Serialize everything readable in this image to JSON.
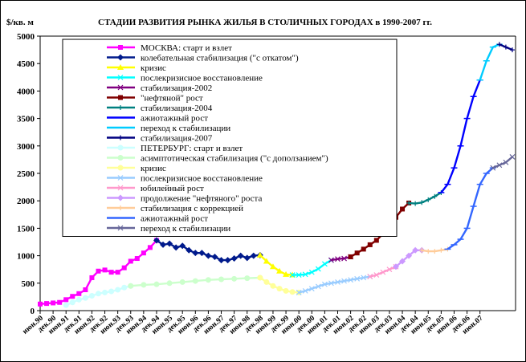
{
  "chart_data": {
    "type": "line",
    "title": "СТАДИИ РАЗВИТИЯ РЫНКА ЖИЛЬЯ В СТОЛИЧНЫХ ГОРОДАХ в 1990-2007 гг.",
    "ylabel": "$/кв. м",
    "xlabel": "",
    "ylim": [
      0,
      5000
    ],
    "yticks": [
      0,
      500,
      1000,
      1500,
      2000,
      2500,
      3000,
      3500,
      4000,
      4500,
      5000
    ],
    "x_tick_labels": [
      "июн.90",
      "дек.90",
      "июн.91",
      "дек.91",
      "июн.92",
      "дек.92",
      "июн.93",
      "дек.93",
      "июн.94",
      "дек.94",
      "июн.95",
      "дек.95",
      "июн.96",
      "дек.96",
      "июн.97",
      "дек.97",
      "июн.98",
      "дек.98",
      "июн.99",
      "дек.99",
      "июн.00",
      "дек.00",
      "июн.01",
      "дек.01",
      "июн.02",
      "дек.02",
      "июн.03",
      "дек.03",
      "июн.04",
      "дек.04",
      "июн.05",
      "дек.05",
      "июн.06",
      "дек.06",
      "июн.07"
    ],
    "grid": false,
    "legend_position": "top-left",
    "series": [
      {
        "name": "МОСКВА: старт и взлет",
        "color": "#ff00ff",
        "marker": "square",
        "points": [
          [
            0,
            120
          ],
          [
            1,
            130
          ],
          [
            2,
            140
          ],
          [
            3,
            150
          ],
          [
            4,
            200
          ],
          [
            5,
            260
          ],
          [
            6,
            310
          ],
          [
            7,
            380
          ],
          [
            8,
            600
          ],
          [
            9,
            720
          ],
          [
            10,
            740
          ],
          [
            11,
            700
          ],
          [
            12,
            700
          ],
          [
            13,
            780
          ],
          [
            14,
            900
          ],
          [
            15,
            950
          ],
          [
            16,
            1050
          ],
          [
            17,
            1150
          ],
          [
            18,
            1280
          ]
        ]
      },
      {
        "name": "колебательная стабилизация (\"с откатом\")",
        "color": "#001a8c",
        "marker": "diamond",
        "points": [
          [
            18,
            1280
          ],
          [
            19,
            1200
          ],
          [
            20,
            1220
          ],
          [
            21,
            1150
          ],
          [
            22,
            1180
          ],
          [
            23,
            1100
          ],
          [
            24,
            1050
          ],
          [
            25,
            1050
          ],
          [
            26,
            1000
          ],
          [
            27,
            980
          ],
          [
            28,
            920
          ],
          [
            29,
            920
          ],
          [
            30,
            950
          ],
          [
            31,
            1000
          ],
          [
            32,
            960
          ],
          [
            33,
            1000
          ],
          [
            34,
            1010
          ]
        ]
      },
      {
        "name": "кризис",
        "color": "#ffff00",
        "marker": "triangle",
        "points": [
          [
            34,
            1010
          ],
          [
            35,
            900
          ],
          [
            36,
            800
          ],
          [
            37,
            720
          ],
          [
            38,
            660
          ],
          [
            39,
            650
          ]
        ]
      },
      {
        "name": "послекризисное восстановление",
        "color": "#00ffff",
        "marker": "x",
        "points": [
          [
            39,
            650
          ],
          [
            40,
            650
          ],
          [
            41,
            660
          ],
          [
            42,
            700
          ],
          [
            43,
            760
          ],
          [
            44,
            850
          ],
          [
            45,
            920
          ]
        ]
      },
      {
        "name": "стабилизация-2002",
        "color": "#800080",
        "marker": "x",
        "points": [
          [
            45,
            920
          ],
          [
            46,
            940
          ],
          [
            47,
            950
          ],
          [
            48,
            980
          ]
        ]
      },
      {
        "name": "\"нефтяной\" рост",
        "color": "#800000",
        "marker": "square",
        "points": [
          [
            48,
            980
          ],
          [
            49,
            1050
          ],
          [
            50,
            1120
          ],
          [
            51,
            1200
          ],
          [
            52,
            1280
          ],
          [
            53,
            1400
          ],
          [
            54,
            1550
          ],
          [
            55,
            1700
          ],
          [
            56,
            1850
          ],
          [
            57,
            1960
          ]
        ]
      },
      {
        "name": "стабилизация-2004",
        "color": "#008080",
        "marker": "plus",
        "points": [
          [
            57,
            1960
          ],
          [
            58,
            1950
          ],
          [
            59,
            1970
          ],
          [
            60,
            2020
          ],
          [
            61,
            2080
          ],
          [
            62,
            2150
          ]
        ]
      },
      {
        "name": "ажиотажный рост",
        "color": "#0000ff",
        "marker": "dash",
        "points": [
          [
            62,
            2150
          ],
          [
            63,
            2300
          ],
          [
            64,
            2600
          ],
          [
            65,
            3000
          ],
          [
            66,
            3500
          ],
          [
            67,
            3900
          ],
          [
            68,
            4200
          ]
        ]
      },
      {
        "name": "переход к стабилизации",
        "color": "#00ccff",
        "marker": "dash",
        "points": [
          [
            68,
            4200
          ],
          [
            69,
            4550
          ],
          [
            70,
            4800
          ],
          [
            71,
            4850
          ]
        ]
      },
      {
        "name": "стабилизация-2007",
        "color": "#000080",
        "marker": "plus",
        "points": [
          [
            71,
            4850
          ],
          [
            72,
            4800
          ],
          [
            73,
            4750
          ]
        ]
      },
      {
        "name": "ПЕТЕРБУРГ: старт и взлет",
        "color": "#ccffff",
        "marker": "circle",
        "points": [
          [
            4,
            100
          ],
          [
            5,
            150
          ],
          [
            6,
            200
          ],
          [
            7,
            230
          ],
          [
            8,
            270
          ],
          [
            9,
            310
          ],
          [
            10,
            330
          ],
          [
            11,
            350
          ],
          [
            12,
            380
          ],
          [
            13,
            420
          ],
          [
            14,
            450
          ]
        ]
      },
      {
        "name": "асимптотическая стабилизация (\"с доползанием\")",
        "color": "#ccffcc",
        "marker": "circle",
        "points": [
          [
            14,
            450
          ],
          [
            16,
            470
          ],
          [
            18,
            480
          ],
          [
            20,
            500
          ],
          [
            22,
            520
          ],
          [
            24,
            540
          ],
          [
            26,
            560
          ],
          [
            28,
            570
          ],
          [
            30,
            580
          ],
          [
            32,
            590
          ],
          [
            34,
            600
          ]
        ]
      },
      {
        "name": "кризис",
        "color": "#ffff99",
        "marker": "circle",
        "points": [
          [
            34,
            600
          ],
          [
            35,
            520
          ],
          [
            36,
            450
          ],
          [
            37,
            400
          ],
          [
            38,
            360
          ],
          [
            39,
            340
          ],
          [
            40,
            330
          ]
        ]
      },
      {
        "name": "послекризисное восстановление",
        "color": "#99ccff",
        "marker": "x",
        "points": [
          [
            40,
            330
          ],
          [
            41,
            360
          ],
          [
            42,
            400
          ],
          [
            43,
            440
          ],
          [
            44,
            480
          ],
          [
            45,
            500
          ],
          [
            46,
            520
          ],
          [
            47,
            540
          ],
          [
            48,
            560
          ],
          [
            49,
            580
          ],
          [
            50,
            600
          ],
          [
            51,
            620
          ]
        ]
      },
      {
        "name": "юбилейный рост",
        "color": "#ff99cc",
        "marker": "x",
        "points": [
          [
            51,
            620
          ],
          [
            52,
            650
          ],
          [
            53,
            700
          ],
          [
            54,
            750
          ],
          [
            55,
            800
          ]
        ]
      },
      {
        "name": "продолжение \"нефтяного\" роста",
        "color": "#cc99ff",
        "marker": "diamond",
        "points": [
          [
            55,
            800
          ],
          [
            56,
            900
          ],
          [
            57,
            1000
          ],
          [
            58,
            1100
          ],
          [
            59,
            1100
          ]
        ]
      },
      {
        "name": "стабилизация с коррекцией",
        "color": "#ffcc99",
        "marker": "plus",
        "points": [
          [
            59,
            1100
          ],
          [
            60,
            1080
          ],
          [
            61,
            1080
          ],
          [
            62,
            1100
          ],
          [
            63,
            1120
          ]
        ]
      },
      {
        "name": "ажиотажный рост",
        "color": "#3366ff",
        "marker": "dash",
        "points": [
          [
            63,
            1120
          ],
          [
            64,
            1200
          ],
          [
            65,
            1300
          ],
          [
            66,
            1500
          ],
          [
            67,
            1900
          ],
          [
            68,
            2300
          ],
          [
            69,
            2500
          ],
          [
            70,
            2600
          ]
        ]
      },
      {
        "name": "переход к стабилизации",
        "color": "#666699",
        "marker": "x",
        "points": [
          [
            70,
            2600
          ],
          [
            71,
            2650
          ],
          [
            72,
            2700
          ],
          [
            73,
            2800
          ]
        ]
      }
    ]
  }
}
